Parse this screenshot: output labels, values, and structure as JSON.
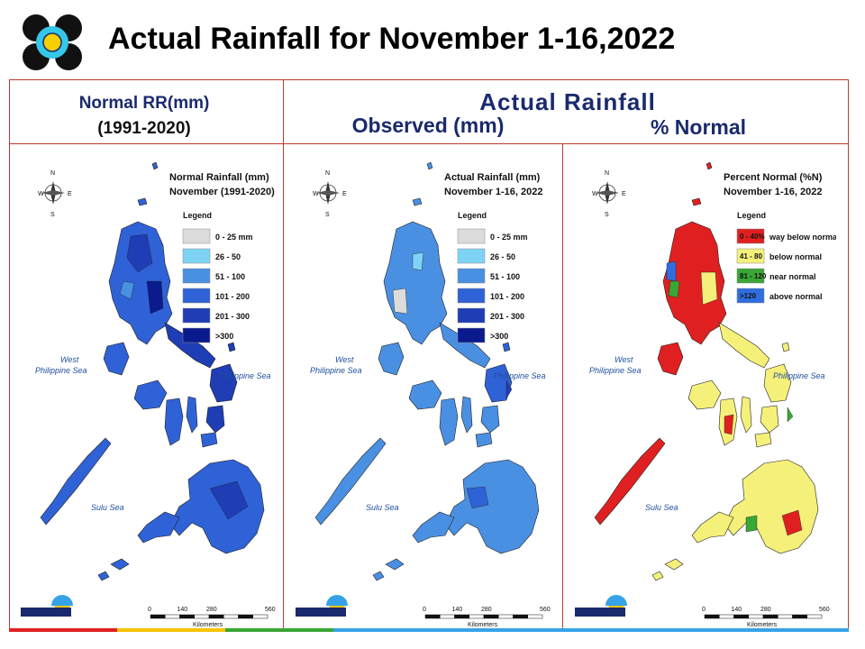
{
  "title": "Actual Rainfall for November 1-16,2022",
  "headers": {
    "normal_line1": "Normal RR(mm)",
    "normal_line2": "(1991-2020)",
    "actual": "Actual Rainfall",
    "observed": "Observed (mm)",
    "percent": "% Normal"
  },
  "maps": [
    {
      "title_line1": "Normal Rainfall (mm)",
      "title_line2": "November (1991-2020)",
      "legend_title": "Legend",
      "legend": [
        {
          "label": "0 - 25 mm",
          "color": "#dcdcdc"
        },
        {
          "label": "26 - 50",
          "color": "#7fd3f7"
        },
        {
          "label": "51 - 100",
          "color": "#4a90e2"
        },
        {
          "label": "101 - 200",
          "color": "#2f62d6"
        },
        {
          "label": "201 - 300",
          "color": "#1f3db5"
        },
        {
          "label": ">300",
          "color": "#0a1a8c"
        }
      ],
      "sea_west_1": "West",
      "sea_west_2": "Philippine Sea",
      "sea_east": "Philippine Sea",
      "sea_south": "Sulu Sea",
      "scale": [
        "0",
        "140",
        "280",
        "560"
      ],
      "scale_unit": "Kilometers"
    },
    {
      "title_line1": "Actual Rainfall (mm)",
      "title_line2": "November 1-16, 2022",
      "legend_title": "Legend",
      "legend": [
        {
          "label": "0 - 25 mm",
          "color": "#dcdcdc"
        },
        {
          "label": "26 - 50",
          "color": "#7fd3f7"
        },
        {
          "label": "51 - 100",
          "color": "#4a90e2"
        },
        {
          "label": "101 - 200",
          "color": "#2f62d6"
        },
        {
          "label": "201 - 300",
          "color": "#1f3db5"
        },
        {
          "label": ">300",
          "color": "#0a1a8c"
        }
      ],
      "sea_west_1": "West",
      "sea_west_2": "Philippine Sea",
      "sea_east": "Philippine Sea",
      "sea_south": "Sulu Sea",
      "scale": [
        "0",
        "140",
        "280",
        "560"
      ],
      "scale_unit": "Kilometers"
    },
    {
      "title_line1": "Percent Normal (%N)",
      "title_line2": "November 1-16, 2022",
      "legend_title": "Legend",
      "legend": [
        {
          "box": "0 - 40%",
          "label": "way below normal",
          "color": "#e02020"
        },
        {
          "box": "41 - 80",
          "label": "below normal",
          "color": "#f5f07a"
        },
        {
          "box": "81 - 120",
          "label": "near normal",
          "color": "#3aa635"
        },
        {
          "box": ">120",
          "label": "above normal",
          "color": "#2f6ee0"
        }
      ],
      "sea_west_1": "West",
      "sea_west_2": "Philippine Sea",
      "sea_east": "Philippine Sea",
      "sea_south": "Sulu Sea",
      "scale": [
        "0",
        "140",
        "280",
        "560"
      ],
      "scale_unit": "Kilometers"
    }
  ],
  "colors": {
    "frame": "#c0392b",
    "header_text": "#1a2a6c"
  }
}
